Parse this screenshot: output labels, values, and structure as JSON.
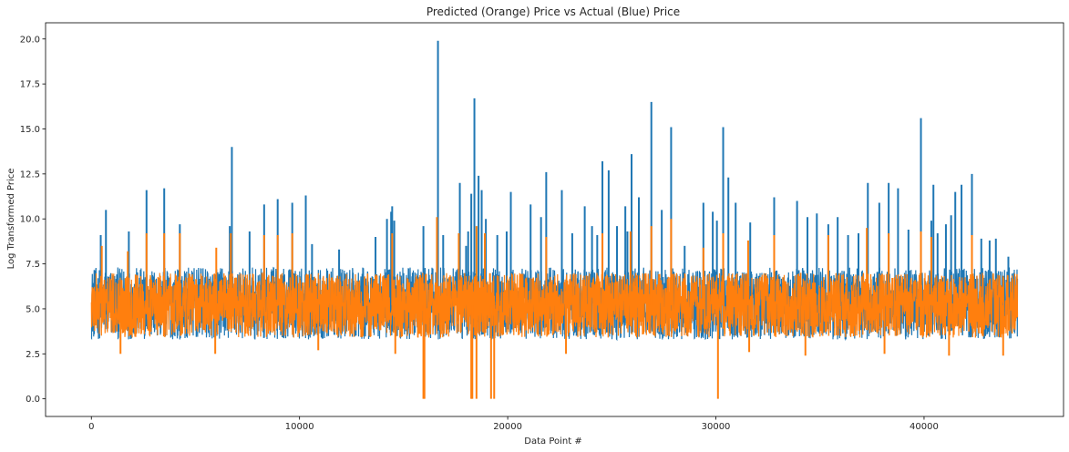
{
  "chart_data": {
    "type": "line",
    "title": "Predicted (Orange) Price vs Actual (Blue) Price",
    "xlabel": "Data Point #",
    "ylabel": "Log Transformed Price",
    "xlim": [
      -2200,
      46700
    ],
    "ylim": [
      -0.98,
      20.9
    ],
    "x_ticks": [
      0,
      10000,
      20000,
      30000,
      40000
    ],
    "x_tick_labels": [
      "0",
      "10000",
      "20000",
      "30000",
      "40000"
    ],
    "y_ticks": [
      0.0,
      2.5,
      5.0,
      7.5,
      10.0,
      12.5,
      15.0,
      17.5,
      20.0
    ],
    "y_tick_labels": [
      "0.0",
      "2.5",
      "5.0",
      "7.5",
      "10.0",
      "12.5",
      "15.0",
      "17.5",
      "20.0"
    ],
    "grid": false,
    "legend": "none",
    "n_points": 44500,
    "series": [
      {
        "color": "#1f77b4",
        "typical_range": [
          3.3,
          7.3
        ],
        "spikes": [
          [
            450,
            9.1
          ],
          [
            700,
            10.5
          ],
          [
            1800,
            9.3
          ],
          [
            2650,
            11.6
          ],
          [
            3500,
            11.7
          ],
          [
            4250,
            9.7
          ],
          [
            6650,
            9.6
          ],
          [
            6750,
            14.0
          ],
          [
            7600,
            9.3
          ],
          [
            8300,
            10.8
          ],
          [
            8950,
            11.1
          ],
          [
            9650,
            10.9
          ],
          [
            10300,
            11.3
          ],
          [
            10600,
            8.6
          ],
          [
            11900,
            8.3
          ],
          [
            13650,
            9.0
          ],
          [
            14200,
            10.0
          ],
          [
            14400,
            10.4
          ],
          [
            14450,
            10.7
          ],
          [
            14550,
            9.9
          ],
          [
            15950,
            9.6
          ],
          [
            16650,
            19.9
          ],
          [
            16900,
            9.1
          ],
          [
            17700,
            12.0
          ],
          [
            18000,
            8.5
          ],
          [
            18100,
            9.3
          ],
          [
            18250,
            11.4
          ],
          [
            18400,
            16.7
          ],
          [
            18600,
            12.4
          ],
          [
            18750,
            11.6
          ],
          [
            18950,
            10.0
          ],
          [
            19500,
            9.1
          ],
          [
            19950,
            9.3
          ],
          [
            20150,
            11.5
          ],
          [
            21100,
            10.8
          ],
          [
            21600,
            10.1
          ],
          [
            21850,
            12.6
          ],
          [
            22600,
            11.6
          ],
          [
            23100,
            9.2
          ],
          [
            23700,
            10.7
          ],
          [
            24050,
            9.6
          ],
          [
            24300,
            9.1
          ],
          [
            24550,
            13.2
          ],
          [
            24850,
            12.7
          ],
          [
            25250,
            9.6
          ],
          [
            25650,
            10.7
          ],
          [
            25750,
            9.3
          ],
          [
            25950,
            13.6
          ],
          [
            26300,
            11.2
          ],
          [
            26900,
            16.5
          ],
          [
            27400,
            10.5
          ],
          [
            27850,
            15.1
          ],
          [
            28500,
            8.5
          ],
          [
            29400,
            10.9
          ],
          [
            29850,
            10.4
          ],
          [
            30050,
            9.9
          ],
          [
            30350,
            15.1
          ],
          [
            30600,
            12.3
          ],
          [
            30950,
            10.9
          ],
          [
            31650,
            9.8
          ],
          [
            32800,
            11.2
          ],
          [
            33900,
            11.0
          ],
          [
            34400,
            10.1
          ],
          [
            34850,
            10.3
          ],
          [
            35400,
            9.7
          ],
          [
            35850,
            10.1
          ],
          [
            36350,
            9.1
          ],
          [
            36850,
            9.2
          ],
          [
            37300,
            12.0
          ],
          [
            37850,
            10.9
          ],
          [
            38300,
            12.0
          ],
          [
            38750,
            11.7
          ],
          [
            39250,
            9.4
          ],
          [
            39850,
            15.6
          ],
          [
            40350,
            9.9
          ],
          [
            40450,
            11.9
          ],
          [
            40650,
            9.2
          ],
          [
            41050,
            9.7
          ],
          [
            41300,
            10.2
          ],
          [
            41500,
            11.5
          ],
          [
            41800,
            11.9
          ],
          [
            42300,
            12.5
          ],
          [
            42750,
            8.9
          ],
          [
            43150,
            8.8
          ],
          [
            43450,
            8.9
          ],
          [
            44050,
            7.9
          ]
        ],
        "dips": []
      },
      {
        "color": "#ff7f0e",
        "typical_range": [
          3.4,
          7.0
        ],
        "spikes": [
          [
            500,
            8.5
          ],
          [
            1750,
            8.2
          ],
          [
            2650,
            9.2
          ],
          [
            3500,
            9.2
          ],
          [
            4250,
            9.2
          ],
          [
            6000,
            8.4
          ],
          [
            6700,
            9.2
          ],
          [
            8300,
            9.1
          ],
          [
            8950,
            9.1
          ],
          [
            9650,
            9.2
          ],
          [
            14450,
            9.2
          ],
          [
            16600,
            10.1
          ],
          [
            17650,
            9.2
          ],
          [
            18500,
            9.6
          ],
          [
            18900,
            9.2
          ],
          [
            21850,
            9.0
          ],
          [
            24550,
            9.2
          ],
          [
            25900,
            9.3
          ],
          [
            26900,
            9.6
          ],
          [
            27850,
            10.0
          ],
          [
            29400,
            8.4
          ],
          [
            30350,
            9.2
          ],
          [
            31550,
            8.8
          ],
          [
            32800,
            9.1
          ],
          [
            35400,
            9.1
          ],
          [
            37250,
            9.5
          ],
          [
            38300,
            9.2
          ],
          [
            39850,
            9.3
          ],
          [
            40350,
            9.0
          ],
          [
            42300,
            9.1
          ]
        ],
        "dips": [
          [
            1400,
            2.5
          ],
          [
            5950,
            2.5
          ],
          [
            10900,
            2.7
          ],
          [
            14600,
            2.5
          ],
          [
            15950,
            0.0
          ],
          [
            16000,
            0.0
          ],
          [
            18250,
            0.0
          ],
          [
            18300,
            0.0
          ],
          [
            18500,
            0.0
          ],
          [
            19200,
            0.0
          ],
          [
            19350,
            0.0
          ],
          [
            30100,
            0.0
          ],
          [
            22800,
            2.5
          ],
          [
            31600,
            2.6
          ],
          [
            34300,
            2.4
          ],
          [
            38100,
            2.5
          ],
          [
            41200,
            2.4
          ],
          [
            43800,
            2.4
          ]
        ]
      }
    ]
  }
}
